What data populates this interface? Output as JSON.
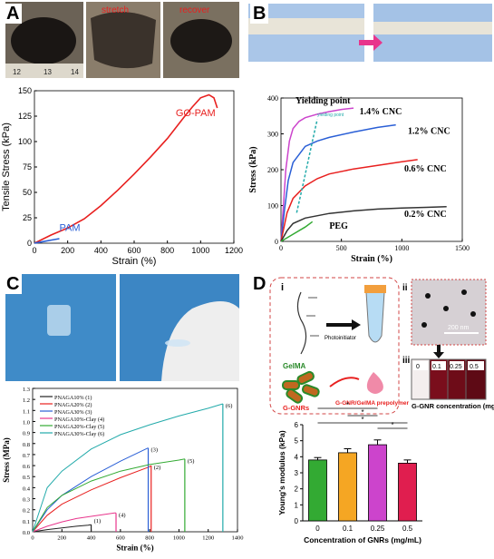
{
  "panels": {
    "a": {
      "letter": "A",
      "photo_labels": [
        "stretch",
        "recover"
      ],
      "ruler_ticks": [
        "12",
        "13",
        "14"
      ]
    },
    "b": {
      "letter": "B"
    },
    "c": {
      "letter": "C"
    },
    "d": {
      "letter": "D",
      "sub_labels": [
        "i",
        "ii",
        "iii"
      ],
      "schematic": {
        "gelma": "GelMA",
        "photoinitiator": "Photoinitiator",
        "g_gnrs": "G-GNRs",
        "prepolymer": "G-GNR/GelMA prepolymer"
      },
      "tem_scale": "200 nm",
      "vial_labels": [
        "0",
        "0.1",
        "0.25",
        "0.5"
      ],
      "vial_axis": "G-GNR concentration (mg/mL)"
    }
  },
  "colors": {
    "red": "#e8201f",
    "blue": "#2a5fd6",
    "magenta": "#cc44cc",
    "green": "#33aa33",
    "orange": "#f5a623",
    "pink": "#e8358c",
    "crimson": "#e01e4f"
  },
  "chart_data": [
    {
      "type": "line",
      "panel": "A",
      "xlabel": "Strain (%)",
      "ylabel": "Tensile Stress (kPa)",
      "xlim": [
        0,
        1200
      ],
      "ylim": [
        0,
        150
      ],
      "xticks": [
        0,
        200,
        400,
        600,
        800,
        1000,
        1200
      ],
      "yticks": [
        0,
        25,
        50,
        75,
        100,
        125,
        150
      ],
      "series": [
        {
          "name": "GO-PAM",
          "color": "#e8201f",
          "x": [
            0,
            100,
            200,
            300,
            400,
            500,
            600,
            700,
            800,
            900,
            950,
            1000,
            1050,
            1080,
            1100
          ],
          "y": [
            0,
            8,
            15,
            24,
            37,
            52,
            68,
            85,
            103,
            124,
            134,
            143,
            146,
            143,
            133
          ]
        },
        {
          "name": "PAM",
          "color": "#2a5fd6",
          "x": [
            0,
            50,
            100,
            150
          ],
          "y": [
            0,
            1.5,
            3,
            4.5
          ]
        }
      ]
    },
    {
      "type": "line",
      "panel": "B",
      "xlabel": "Strain (%)",
      "ylabel": "Stress (kPa)",
      "xlim": [
        0,
        1500
      ],
      "ylim": [
        0,
        400
      ],
      "xticks": [
        0,
        500,
        1000,
        1500
      ],
      "yticks": [
        0,
        100,
        200,
        300,
        400
      ],
      "annotations": [
        "Yielding point",
        "yielding point",
        "PEG"
      ],
      "series": [
        {
          "name": "1.4% CNC",
          "color": "#cc44cc",
          "x": [
            0,
            20,
            40,
            70,
            100,
            150,
            200,
            300,
            400,
            500,
            600
          ],
          "y": [
            0,
            100,
            200,
            280,
            315,
            335,
            345,
            355,
            362,
            368,
            372
          ]
        },
        {
          "name": "1.2% CNC",
          "color": "#2a5fd6",
          "x": [
            0,
            30,
            60,
            100,
            200,
            300,
            400,
            600,
            800,
            950
          ],
          "y": [
            0,
            90,
            170,
            220,
            265,
            280,
            290,
            305,
            318,
            325
          ]
        },
        {
          "name": "0.6% CNC",
          "color": "#e8201f",
          "x": [
            0,
            50,
            100,
            200,
            300,
            400,
            600,
            800,
            1000,
            1130
          ],
          "y": [
            0,
            80,
            120,
            155,
            175,
            188,
            202,
            212,
            222,
            228
          ]
        },
        {
          "name": "0.2% CNC",
          "color": "#333333",
          "x": [
            0,
            50,
            100,
            200,
            400,
            600,
            800,
            1000,
            1200,
            1370
          ],
          "y": [
            0,
            30,
            50,
            65,
            78,
            85,
            90,
            93,
            95,
            97
          ]
        },
        {
          "name": "PEG",
          "color": "#33aa33",
          "x": [
            0,
            100,
            200,
            260
          ],
          "y": [
            0,
            20,
            40,
            55
          ]
        },
        {
          "name": "yielding point",
          "color": "#22aaaa",
          "x": [
            130,
            190,
            260,
            300
          ],
          "y": [
            80,
            170,
            280,
            340
          ]
        }
      ]
    },
    {
      "type": "line",
      "panel": "C",
      "xlabel": "Strain (%)",
      "ylabel": "Stress (MPa)",
      "xlim": [
        0,
        1400
      ],
      "ylim": [
        0,
        1.3
      ],
      "xticks": [
        0,
        200,
        400,
        600,
        800,
        1000,
        1200,
        1400
      ],
      "yticks": [
        0.0,
        0.1,
        0.2,
        0.3,
        0.4,
        0.5,
        0.6,
        0.7,
        0.8,
        0.9,
        1.0,
        1.1,
        1.2,
        1.3
      ],
      "series": [
        {
          "name": "PNAGA10% (1)",
          "tag": "(1)",
          "color": "#222222",
          "x": [
            0,
            100,
            200,
            300,
            380,
            400
          ],
          "y": [
            0,
            0.02,
            0.035,
            0.05,
            0.06,
            0.065
          ]
        },
        {
          "name": "PNAGA20% (2)",
          "tag": "(2)",
          "color": "#e8201f",
          "x": [
            0,
            100,
            200,
            400,
            600,
            800,
            810
          ],
          "y": [
            0,
            0.15,
            0.25,
            0.38,
            0.49,
            0.59,
            0.6
          ]
        },
        {
          "name": "PNAGA30% (3)",
          "tag": "(3)",
          "color": "#2a5fd6",
          "x": [
            0,
            100,
            200,
            400,
            600,
            790
          ],
          "y": [
            0,
            0.2,
            0.33,
            0.5,
            0.64,
            0.76
          ]
        },
        {
          "name": "PNAGA10%-Clay (4)",
          "tag": "(4)",
          "color": "#e8358c",
          "x": [
            0,
            100,
            200,
            300,
            400,
            560,
            570
          ],
          "y": [
            0,
            0.05,
            0.09,
            0.12,
            0.14,
            0.17,
            0.17
          ]
        },
        {
          "name": "PNAGA20%-Clay (5)",
          "tag": "(5)",
          "color": "#33aa33",
          "x": [
            0,
            100,
            200,
            400,
            600,
            800,
            1000,
            1040
          ],
          "y": [
            0,
            0.22,
            0.33,
            0.46,
            0.55,
            0.61,
            0.65,
            0.66
          ]
        },
        {
          "name": "PNAGA30%-Clay (6)",
          "tag": "(6)",
          "color": "#22aaaa",
          "x": [
            0,
            100,
            200,
            400,
            600,
            800,
            1000,
            1200,
            1300
          ],
          "y": [
            0,
            0.4,
            0.55,
            0.75,
            0.88,
            0.97,
            1.05,
            1.12,
            1.16
          ]
        }
      ]
    },
    {
      "type": "bar",
      "panel": "D",
      "xlabel": "Concentration of GNRs (mg/mL)",
      "ylabel": "Young's modulus (kPa)",
      "ylim": [
        0,
        6
      ],
      "yticks": [
        0,
        1,
        2,
        3,
        4,
        5,
        6
      ],
      "categories": [
        "0",
        "0.1",
        "0.25",
        "0.5"
      ],
      "values": [
        3.8,
        4.25,
        4.75,
        3.6
      ],
      "errors": [
        0.15,
        0.25,
        0.3,
        0.2
      ],
      "colors": [
        "#33aa33",
        "#f5a623",
        "#cc44cc",
        "#e01e4f"
      ],
      "significance": [
        "*",
        "*",
        "*",
        "*"
      ]
    }
  ]
}
